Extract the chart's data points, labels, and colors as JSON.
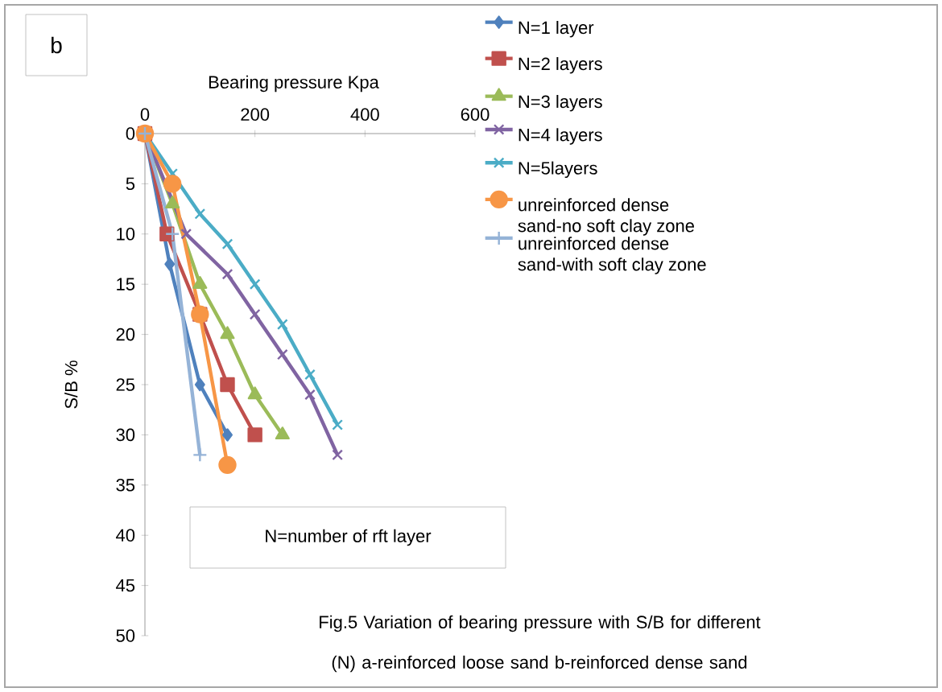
{
  "chart_data": {
    "type": "line",
    "xlabel": "Bearing pressure Kpa",
    "ylabel": "S/B %",
    "xlim": [
      0,
      600
    ],
    "xticks": [
      0,
      200,
      400,
      600
    ],
    "ylim": [
      50,
      0
    ],
    "yticks": [
      0,
      5,
      10,
      15,
      20,
      25,
      30,
      35,
      40,
      45,
      50
    ],
    "legend": "right",
    "grid": false,
    "series": [
      {
        "name": "N=1 layer",
        "color": "#4f81bd",
        "marker": "diamond",
        "x": [
          0,
          45,
          100,
          150
        ],
        "values": [
          0,
          13,
          25,
          30
        ]
      },
      {
        "name": "N=2 layers",
        "color": "#c0504d",
        "marker": "square",
        "x": [
          0,
          40,
          100,
          150,
          200
        ],
        "values": [
          0,
          10,
          18,
          25,
          30
        ]
      },
      {
        "name": "N=3 layers",
        "color": "#9bbb59",
        "marker": "triangle",
        "x": [
          0,
          50,
          100,
          150,
          200,
          250
        ],
        "values": [
          0,
          7,
          15,
          20,
          26,
          30
        ]
      },
      {
        "name": "N=4 layers",
        "color": "#8064a2",
        "marker": "cross",
        "x": [
          0,
          75,
          150,
          200,
          250,
          300,
          350
        ],
        "values": [
          0,
          10,
          14,
          18,
          22,
          26,
          32
        ]
      },
      {
        "name": "N=5layers",
        "color": "#4bacc6",
        "marker": "cross",
        "x": [
          0,
          50,
          100,
          150,
          200,
          250,
          300,
          350
        ],
        "values": [
          0,
          4,
          8,
          11,
          15,
          19,
          24,
          29
        ]
      },
      {
        "name": "unreinforced dense sand-no soft clay zone",
        "color": "#f79646",
        "marker": "circle",
        "x": [
          0,
          50,
          100,
          150
        ],
        "values": [
          0,
          5,
          18,
          33
        ]
      },
      {
        "name": "unreinforced dense sand-with soft clay zone",
        "color": "#95b3d7",
        "marker": "plus",
        "x": [
          0,
          50,
          100
        ],
        "values": [
          0,
          10,
          32
        ]
      }
    ],
    "annotations": [
      "b",
      "N=number of rft layer",
      "Fig.5 Variation of bearing pressure with S/B for different (N) a-reinforced loose sand b-reinforced dense sand"
    ]
  }
}
